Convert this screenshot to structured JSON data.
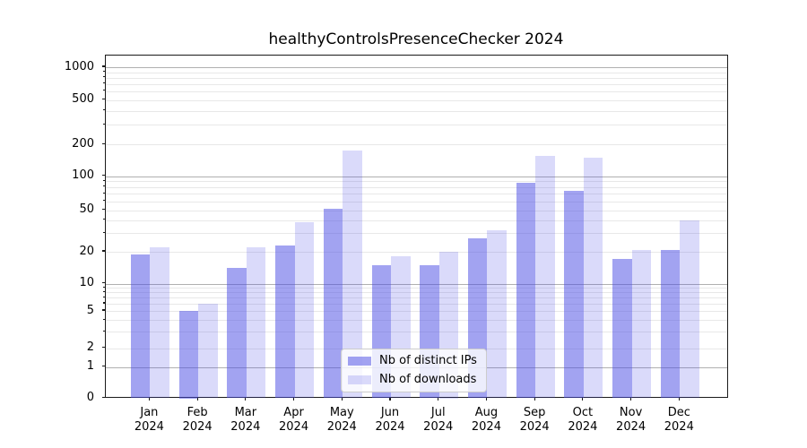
{
  "title": "healthyControlsPresenceChecker 2024",
  "chart_data": {
    "type": "bar",
    "title": "healthyControlsPresenceChecker 2024",
    "categories": [
      "Jan 2024",
      "Feb 2024",
      "Mar 2024",
      "Apr 2024",
      "May 2024",
      "Jun 2024",
      "Jul 2024",
      "Aug 2024",
      "Sep 2024",
      "Oct 2024",
      "Nov 2024",
      "Dec 2024"
    ],
    "series": [
      {
        "name": "Nb of distinct IPs",
        "color": "#4648e4",
        "fill_alpha": 0.5,
        "values": [
          19,
          5,
          14,
          23,
          51,
          15,
          15,
          27,
          87,
          74,
          17,
          21
        ]
      },
      {
        "name": "Nb of downloads",
        "color": "#4648e4",
        "fill_alpha": 0.2,
        "values": [
          22,
          6,
          22,
          38,
          175,
          18,
          20,
          32,
          155,
          150,
          21,
          40
        ]
      }
    ],
    "yscale": "symlog",
    "y_ticks": [
      0,
      1,
      2,
      5,
      10,
      20,
      50,
      100,
      200,
      500,
      1000
    ],
    "y_minor_ticks": [
      3,
      4,
      6,
      7,
      8,
      9,
      30,
      40,
      60,
      70,
      80,
      90,
      300,
      400,
      600,
      700,
      800,
      900
    ],
    "ylim": [
      0,
      1300
    ],
    "xlabel": "",
    "ylabel": "",
    "grid": "both",
    "legend_position": "lower center"
  },
  "colors": {
    "background": "#ffffff",
    "major_grid": "#b0b0b0",
    "minor_grid": "#e8e8e8",
    "spine": "#1a1a1a",
    "text": "#000000",
    "legend_border": "#cccccc"
  }
}
